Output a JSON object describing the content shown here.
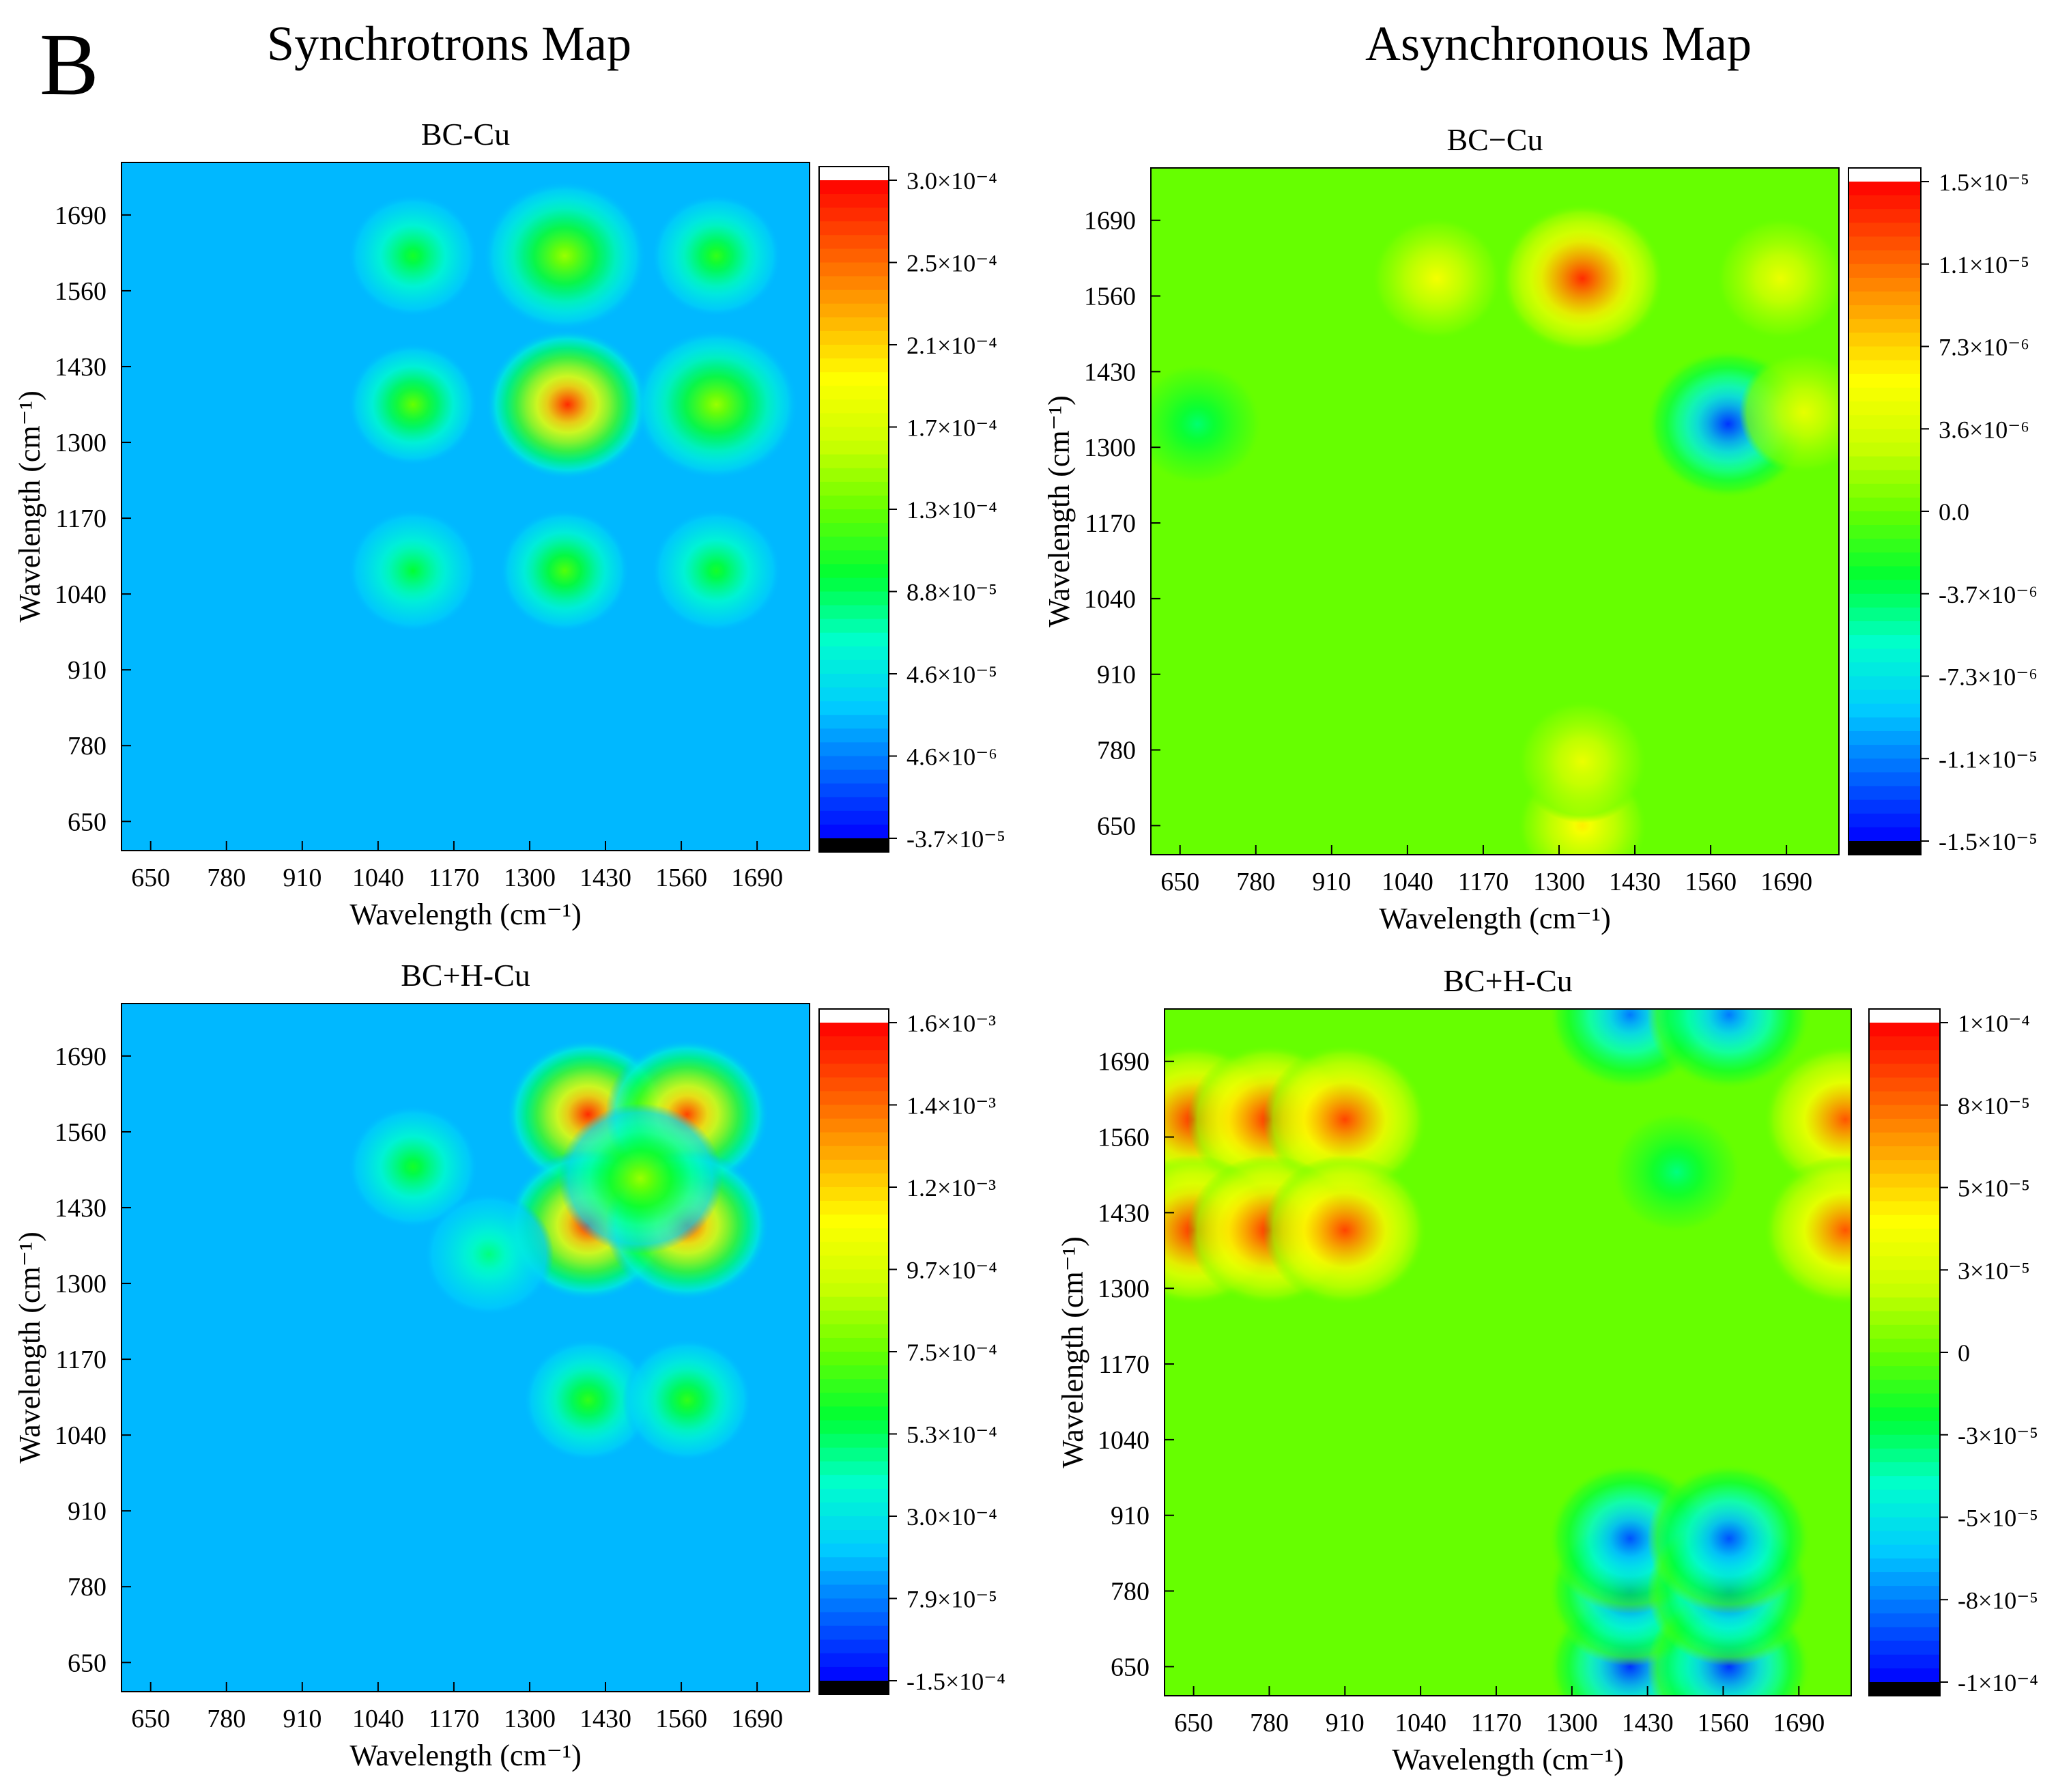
{
  "figure": {
    "panel_letter": "B",
    "column_titles": [
      "Synchrotrons Map",
      "Asynchronous Map"
    ]
  },
  "colors": {
    "scale": [
      "#000000",
      "#0000ff",
      "#0066ff",
      "#00ccff",
      "#00ffcc",
      "#00ff33",
      "#66ff00",
      "#ccff00",
      "#ffff00",
      "#ffaa00",
      "#ff5500",
      "#ff0000",
      "#ffffff"
    ],
    "background_low": "#1a6be8",
    "background_mid": "#1ce64a"
  },
  "chart_data": [
    {
      "type": "heatmap",
      "title": "BC-Cu",
      "map_kind": "synchronous",
      "xlabel": "Wavelength (cm⁻¹)",
      "ylabel": "Wavelength (cm⁻¹)",
      "xlim": [
        600,
        1780
      ],
      "ylim": [
        600,
        1780
      ],
      "xticks": [
        "650",
        "780",
        "910",
        "1040",
        "1170",
        "1300",
        "1430",
        "1560",
        "1690"
      ],
      "yticks": [
        "650",
        "780",
        "910",
        "1040",
        "1170",
        "1300",
        "1430",
        "1560",
        "1690"
      ],
      "colorbar_ticks": [
        "3.0×10⁻⁴",
        "2.5×10⁻⁴",
        "2.1×10⁻⁴",
        "1.7×10⁻⁴",
        "1.3×10⁻⁴",
        "8.8×10⁻⁵",
        "4.6×10⁻⁵",
        "4.6×10⁻⁶",
        "-3.7×10⁻⁵"
      ],
      "zlim": [
        -3.7e-05,
        0.0003
      ],
      "background": 0.18,
      "peaks": [
        {
          "x": 1365,
          "y": 1365,
          "value": 0.95
        },
        {
          "x": 1360,
          "y": 1620,
          "value": 0.55
        },
        {
          "x": 1360,
          "y": 1080,
          "value": 0.48
        },
        {
          "x": 1620,
          "y": 1365,
          "value": 0.55
        },
        {
          "x": 1100,
          "y": 1365,
          "value": 0.5
        },
        {
          "x": 1620,
          "y": 1620,
          "value": 0.45
        },
        {
          "x": 1100,
          "y": 1620,
          "value": 0.42
        },
        {
          "x": 1620,
          "y": 1080,
          "value": 0.42
        },
        {
          "x": 1100,
          "y": 1080,
          "value": 0.4
        }
      ]
    },
    {
      "type": "heatmap",
      "title": "BC−Cu",
      "map_kind": "asynchronous",
      "xlabel": "Wavelength (cm⁻¹)",
      "ylabel": "Wavelength (cm⁻¹)",
      "xlim": [
        600,
        1780
      ],
      "ylim": [
        600,
        1780
      ],
      "xticks": [
        "650",
        "780",
        "910",
        "1040",
        "1170",
        "1300",
        "1430",
        "1560",
        "1690"
      ],
      "yticks": [
        "650",
        "780",
        "910",
        "1040",
        "1170",
        "1300",
        "1430",
        "1560",
        "1690"
      ],
      "colorbar_ticks": [
        "1.5×10⁻⁵",
        "1.1×10⁻⁵",
        "7.3×10⁻⁶",
        "3.6×10⁻⁶",
        "0.0",
        "-3.7×10⁻⁶",
        "-7.3×10⁻⁶",
        "-1.1×10⁻⁵",
        "-1.5×10⁻⁵"
      ],
      "zlim": [
        -1.5e-05,
        1.5e-05
      ],
      "background": 0.5,
      "peaks": [
        {
          "x": 1340,
          "y": 1590,
          "value": 0.95
        },
        {
          "x": 1590,
          "y": 1340,
          "value": 0.05
        },
        {
          "x": 1090,
          "y": 1590,
          "value": 0.68
        },
        {
          "x": 1680,
          "y": 1590,
          "value": 0.66
        },
        {
          "x": 1340,
          "y": 650,
          "value": 0.72
        },
        {
          "x": 1340,
          "y": 760,
          "value": 0.66
        },
        {
          "x": 680,
          "y": 1340,
          "value": 0.36
        },
        {
          "x": 1720,
          "y": 1360,
          "value": 0.65
        }
      ]
    },
    {
      "type": "heatmap",
      "title": "BC+H-Cu",
      "map_kind": "synchronous",
      "xlabel": "Wavelength (cm⁻¹)",
      "ylabel": "Wavelength (cm⁻¹)",
      "xlim": [
        600,
        1780
      ],
      "ylim": [
        600,
        1780
      ],
      "xticks": [
        "650",
        "780",
        "910",
        "1040",
        "1170",
        "1300",
        "1430",
        "1560",
        "1690"
      ],
      "yticks": [
        "650",
        "780",
        "910",
        "1040",
        "1170",
        "1300",
        "1430",
        "1560",
        "1690"
      ],
      "colorbar_ticks": [
        "1.6×10⁻³",
        "1.4×10⁻³",
        "1.2×10⁻³",
        "9.7×10⁻⁴",
        "7.5×10⁻⁴",
        "5.3×10⁻⁴",
        "3.0×10⁻⁴",
        "7.9×10⁻⁵",
        "-1.5×10⁻⁴"
      ],
      "zlim": [
        -0.00015,
        0.0016
      ],
      "background": 0.18,
      "peaks": [
        {
          "x": 1400,
          "y": 1590,
          "value": 0.95
        },
        {
          "x": 1570,
          "y": 1590,
          "value": 0.92
        },
        {
          "x": 1400,
          "y": 1400,
          "value": 0.95
        },
        {
          "x": 1570,
          "y": 1400,
          "value": 0.92
        },
        {
          "x": 1490,
          "y": 1480,
          "value": 0.55
        },
        {
          "x": 1400,
          "y": 1100,
          "value": 0.45
        },
        {
          "x": 1570,
          "y": 1100,
          "value": 0.45
        },
        {
          "x": 1100,
          "y": 1500,
          "value": 0.42
        },
        {
          "x": 1230,
          "y": 1350,
          "value": 0.35
        }
      ]
    },
    {
      "type": "heatmap",
      "title": "BC+H-Cu",
      "map_kind": "asynchronous",
      "xlabel": "Wavelength (cm⁻¹)",
      "ylabel": "Wavelength (cm⁻¹)",
      "xlim": [
        600,
        1780
      ],
      "ylim": [
        600,
        1780
      ],
      "xticks": [
        "650",
        "780",
        "910",
        "1040",
        "1170",
        "1300",
        "1430",
        "1560",
        "1690"
      ],
      "yticks": [
        "650",
        "780",
        "910",
        "1040",
        "1170",
        "1300",
        "1430",
        "1560",
        "1690"
      ],
      "colorbar_ticks": [
        "1×10⁻⁴",
        "8×10⁻⁵",
        "5×10⁻⁵",
        "3×10⁻⁵",
        "0",
        "-3×10⁻⁵",
        "-5×10⁻⁵",
        "-8×10⁻⁵",
        "-1×10⁻⁴"
      ],
      "zlim": [
        -0.0001,
        0.0001
      ],
      "background": 0.5,
      "peaks": [
        {
          "x": 650,
          "y": 1590,
          "value": 0.95
        },
        {
          "x": 780,
          "y": 1590,
          "value": 0.95
        },
        {
          "x": 910,
          "y": 1590,
          "value": 0.92
        },
        {
          "x": 650,
          "y": 1400,
          "value": 0.95
        },
        {
          "x": 780,
          "y": 1400,
          "value": 0.95
        },
        {
          "x": 910,
          "y": 1400,
          "value": 0.92
        },
        {
          "x": 1770,
          "y": 1590,
          "value": 0.9
        },
        {
          "x": 1770,
          "y": 1400,
          "value": 0.9
        },
        {
          "x": 1400,
          "y": 650,
          "value": 0.05
        },
        {
          "x": 1400,
          "y": 780,
          "value": 0.05
        },
        {
          "x": 1400,
          "y": 870,
          "value": 0.08
        },
        {
          "x": 1570,
          "y": 650,
          "value": 0.05
        },
        {
          "x": 1570,
          "y": 780,
          "value": 0.05
        },
        {
          "x": 1570,
          "y": 870,
          "value": 0.08
        },
        {
          "x": 1400,
          "y": 1770,
          "value": 0.12
        },
        {
          "x": 1570,
          "y": 1770,
          "value": 0.12
        },
        {
          "x": 1480,
          "y": 1500,
          "value": 0.35
        }
      ]
    }
  ]
}
